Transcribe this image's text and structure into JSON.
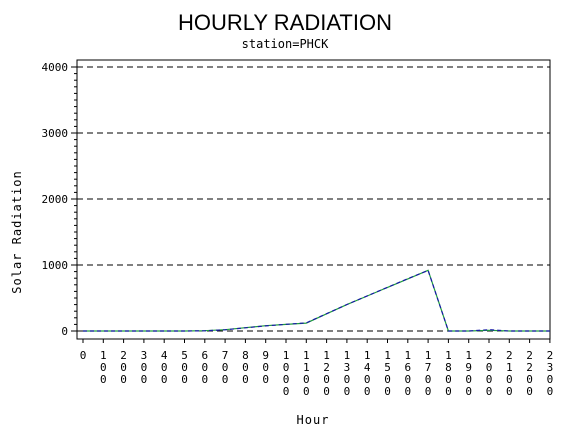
{
  "chart_data": {
    "type": "line",
    "title": "HOURLY RADIATION",
    "subtitle": "station=PHCK",
    "xlabel": "Hour",
    "ylabel": "Solar Radiation",
    "ylim": [
      0,
      4000
    ],
    "yticks": [
      0,
      1000,
      2000,
      3000,
      4000
    ],
    "ytick_labels": [
      "0",
      "1000",
      "2000",
      "3000",
      "4000"
    ],
    "x_categories": [
      "0",
      "100",
      "200",
      "300",
      "400",
      "500",
      "600",
      "700",
      "800",
      "900",
      "1000",
      "1100",
      "1200",
      "1300",
      "1400",
      "1500",
      "1600",
      "1700",
      "1800",
      "1900",
      "2000",
      "2100",
      "2200",
      "2300"
    ],
    "grid": "horizontal dashed",
    "series": [
      {
        "color": "#1f9e3c",
        "values": [
          0,
          0,
          0,
          0,
          0,
          0,
          5,
          20,
          50,
          80,
          100,
          120,
          260,
          400,
          530,
          660,
          790,
          920,
          0,
          0,
          10,
          0,
          0,
          0
        ]
      },
      {
        "color": "#1a1aa8",
        "values": [
          0,
          0,
          0,
          0,
          0,
          0,
          3,
          18,
          48,
          78,
          102,
          122,
          262,
          402,
          532,
          662,
          792,
          918,
          0,
          0,
          20,
          0,
          0,
          0
        ]
      }
    ]
  }
}
